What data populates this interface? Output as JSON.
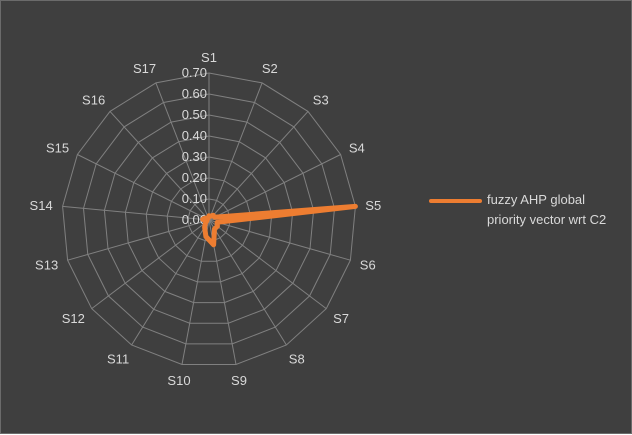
{
  "chart_data": {
    "type": "radar",
    "title": "",
    "categories": [
      "S1",
      "S2",
      "S3",
      "S4",
      "S5",
      "S6",
      "S7",
      "S8",
      "S9",
      "S10",
      "S11",
      "S12",
      "S13",
      "S14",
      "S15",
      "S16",
      "S17"
    ],
    "series": [
      {
        "name": "fuzzy AHP global priority vector wrt C2",
        "values": [
          0.02,
          0.02,
          0.03,
          0.03,
          0.7,
          0.04,
          0.05,
          0.05,
          0.12,
          0.08,
          0.04,
          0.02,
          0.01,
          0.03,
          0.02,
          0.01,
          0.01
        ],
        "color": "#ed7d31"
      }
    ],
    "rlim": [
      0,
      0.7
    ],
    "ticks": [
      "0.00",
      "0.10",
      "0.20",
      "0.30",
      "0.40",
      "0.50",
      "0.60",
      "0.70"
    ],
    "grid": true,
    "legend_position": "right",
    "colors": {
      "background": "#3f3f3f",
      "grid": "#808080",
      "text": "#d9d9d9",
      "series": "#ed7d31"
    }
  }
}
